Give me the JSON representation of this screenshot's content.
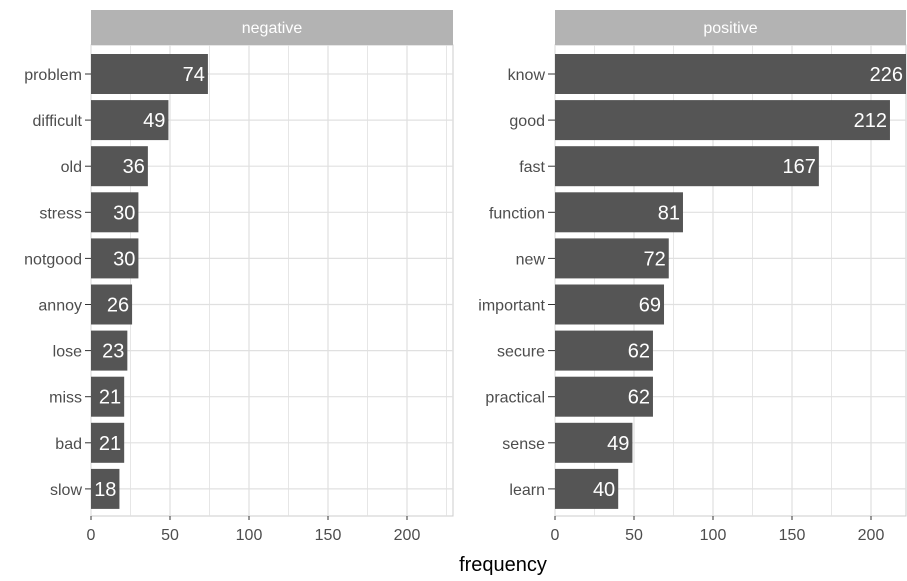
{
  "colors": {
    "bar": "#555555",
    "strip": "#b3b3b3",
    "grid": "#e0e0e0",
    "panel_border": "#cccccc",
    "text": "#4d4d4d",
    "value_text": "#ffffff"
  },
  "chart_data": {
    "type": "bar",
    "orientation": "horizontal",
    "xlabel": "frequency",
    "grid": true,
    "xticks": [
      0,
      50,
      100,
      150,
      200
    ],
    "panels": [
      {
        "strip": "negative",
        "xlim": [
          0,
          226
        ],
        "categories": [
          "problem",
          "difficult",
          "old",
          "stress",
          "notgood",
          "annoy",
          "lose",
          "miss",
          "bad",
          "slow"
        ],
        "values": [
          74,
          49,
          36,
          30,
          30,
          26,
          23,
          21,
          21,
          18
        ]
      },
      {
        "strip": "positive",
        "xlim": [
          0,
          226
        ],
        "categories": [
          "know",
          "good",
          "fast",
          "function",
          "new",
          "important",
          "secure",
          "practical",
          "sense",
          "learn"
        ],
        "values": [
          226,
          212,
          167,
          81,
          72,
          69,
          62,
          62,
          49,
          40
        ]
      }
    ]
  }
}
